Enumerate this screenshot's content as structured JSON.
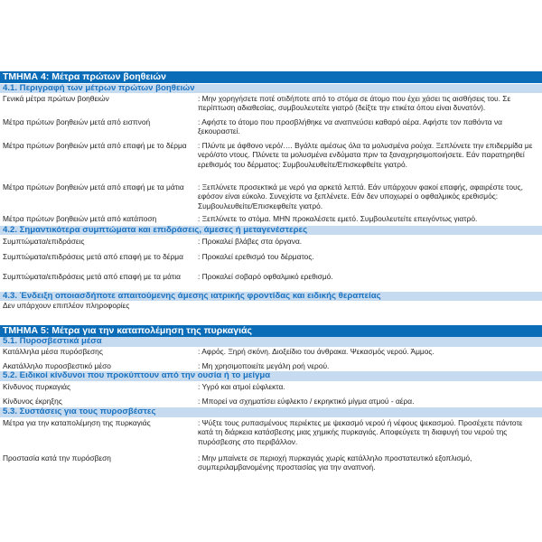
{
  "s4": {
    "title": "ΤΜΗΜΑ 4: Μέτρα πρώτων βοηθειών",
    "s41": {
      "title": "4.1. Περιγραφή των μέτρων πρώτων βοηθειών",
      "rows": [
        {
          "label": "Γενικά μέτρα πρώτων βοηθειών",
          "value": ": Μην χορηγήσετε ποτέ οτιδήποτε από το στόμα σε άτομο που έχει χάσει τις αισθήσεις του. Σε περίπτωση αδιαθεσίας, συμβουλευτείτε γιατρό (δείξτε την ετικέτα όπου είναι δυνατόν)."
        },
        {
          "label": "Μέτρα πρώτων βοηθειών μετά από εισπνοή",
          "value": ": Αφήστε το άτομο που προσβλήθηκε να αναπνεύσει καθαρό αέρα. Αφήστε τον παθόντα να ξεκουραστεί."
        },
        {
          "label": "Μέτρα πρώτων βοηθειών μετά από επαφή με το δέρμα",
          "value": ": Πλύντε με άφθονο νερό/…. Βγάλτε αμέσως όλα τα μολυσμένα ρούχα. Ξεπλύνετε την επιδερμίδα με νερό/στο ντους. Πλύνετε τα μολυσμένα ενδύματα πριν τα ξαναχρησιμοποιήσετε. Εάν παρατηρηθεί ερεθισμός του δέρματος: Συμβουλευθείτε/Επισκεφθείτε γιατρό."
        },
        {
          "label": "Μέτρα πρώτων βοηθειών μετά από επαφή με τα μάτια",
          "value": ": Ξεπλύνετε προσεκτικά με νερό για αρκετά λεπτά. Εάν υπάρχουν φακοί επαφής, αφαιρέστε τους, εφόσον είναι εύκολο. Συνεχίστε να ξεπλένετε. Εάν δεν υποχωρεί ο οφθαλμικός ερεθισμός: Συμβουλευθείτε/Επισκεφθείτε γιατρό."
        },
        {
          "label": "Μέτρα πρώτων βοηθειών μετά από κατάποση",
          "value": ": Ξεπλύνετε το στόμα. ΜΗΝ προκαλέσετε εμετό. Συμβουλευτείτε επειγόντως γιατρό."
        }
      ]
    },
    "s42": {
      "title": "4.2. Σημαντικότερα συμπτώματα και επιδράσεις, άμεσες ή μεταγενέστερες",
      "rows": [
        {
          "label": "Συμπτώματα/επιδράσεις",
          "value": ": Προκαλεί βλάβες στα όργανα."
        },
        {
          "label": "Συμπτώματα/επιδράσεις μετά από επαφή με το δέρμα",
          "value": ": Προκαλεί ερεθισμό του δέρματος."
        },
        {
          "label": "Συμπτώματα/επιδράσεις μετά από επαφή με τα μάτια",
          "value": ": Προκαλεί σοβαρό οφθαλμικό ερεθισμό."
        }
      ]
    },
    "s43": {
      "title": "4.3. Ένδειξη οποιασδήποτε απαιτούμενης άμεσης ιατρικής φροντίδας και ειδικής θεραπείας",
      "text": "Δεν υπάρχουν επιπλέον πληροφορίες"
    }
  },
  "s5": {
    "title": "ΤΜΗΜΑ 5: Μέτρα για την καταπολέμηση της πυρκαγιάς",
    "s51": {
      "title": "5.1. Πυροσβεστικά μέσα",
      "rows": [
        {
          "label": "Κατάλληλα μέσα πυρόσβεσης",
          "value": ": Αφρός. Ξηρή σκόνη. Διοξείδιο του άνθρακα. Ψεκασμός νερού. Άμμος."
        },
        {
          "label": "Ακατάλληλο πυροσβεστικό μέσο",
          "value": ": Μη χρησιμοποιείτε μεγάλη ροή νερού."
        }
      ]
    },
    "s52": {
      "title": "5.2. Ειδικοί κίνδυνοι που προκύπτουν από την ουσία ή το μείγμα",
      "rows": [
        {
          "label": "Κίνδυνος πυρκαγιάς",
          "value": ": Υγρό και ατμοί εύφλεκτα."
        },
        {
          "label": "Κίνδυνος έκρηξης",
          "value": ": Μπορεί να σχηματίσει εύφλεκτο / εκρηκτικό μίγμα ατμού - αέρα."
        }
      ]
    },
    "s53": {
      "title": "5.3. Συστάσεις για τους πυροσβέστες",
      "rows": [
        {
          "label": "Μέτρα για την καταπολέμηση της πυρκαγιάς",
          "value": ": Ψύξτε τους ρυπασμένους περιέκτες με ψεκασμό νερού ή νέφους ψεκασμού. Προσέχετε πάντοτε κατά τη διάρκεια κατάσβεσης μιας χημικής πυρκαγιάς. Αποφεύγετε τη διαφυγή του νερού της πυρόσβεσης στο περιβάλλον."
        },
        {
          "label": "Προστασία κατά την πυρόσβεση",
          "value": ": Μην μπαίνετε σε περιοχή πυρκαγιάς χωρίς κατάλληλο προστατευτικό εξοπλισμό, συμπεριλαμβανομένης προστασίας για την αναπνοή."
        }
      ]
    }
  }
}
